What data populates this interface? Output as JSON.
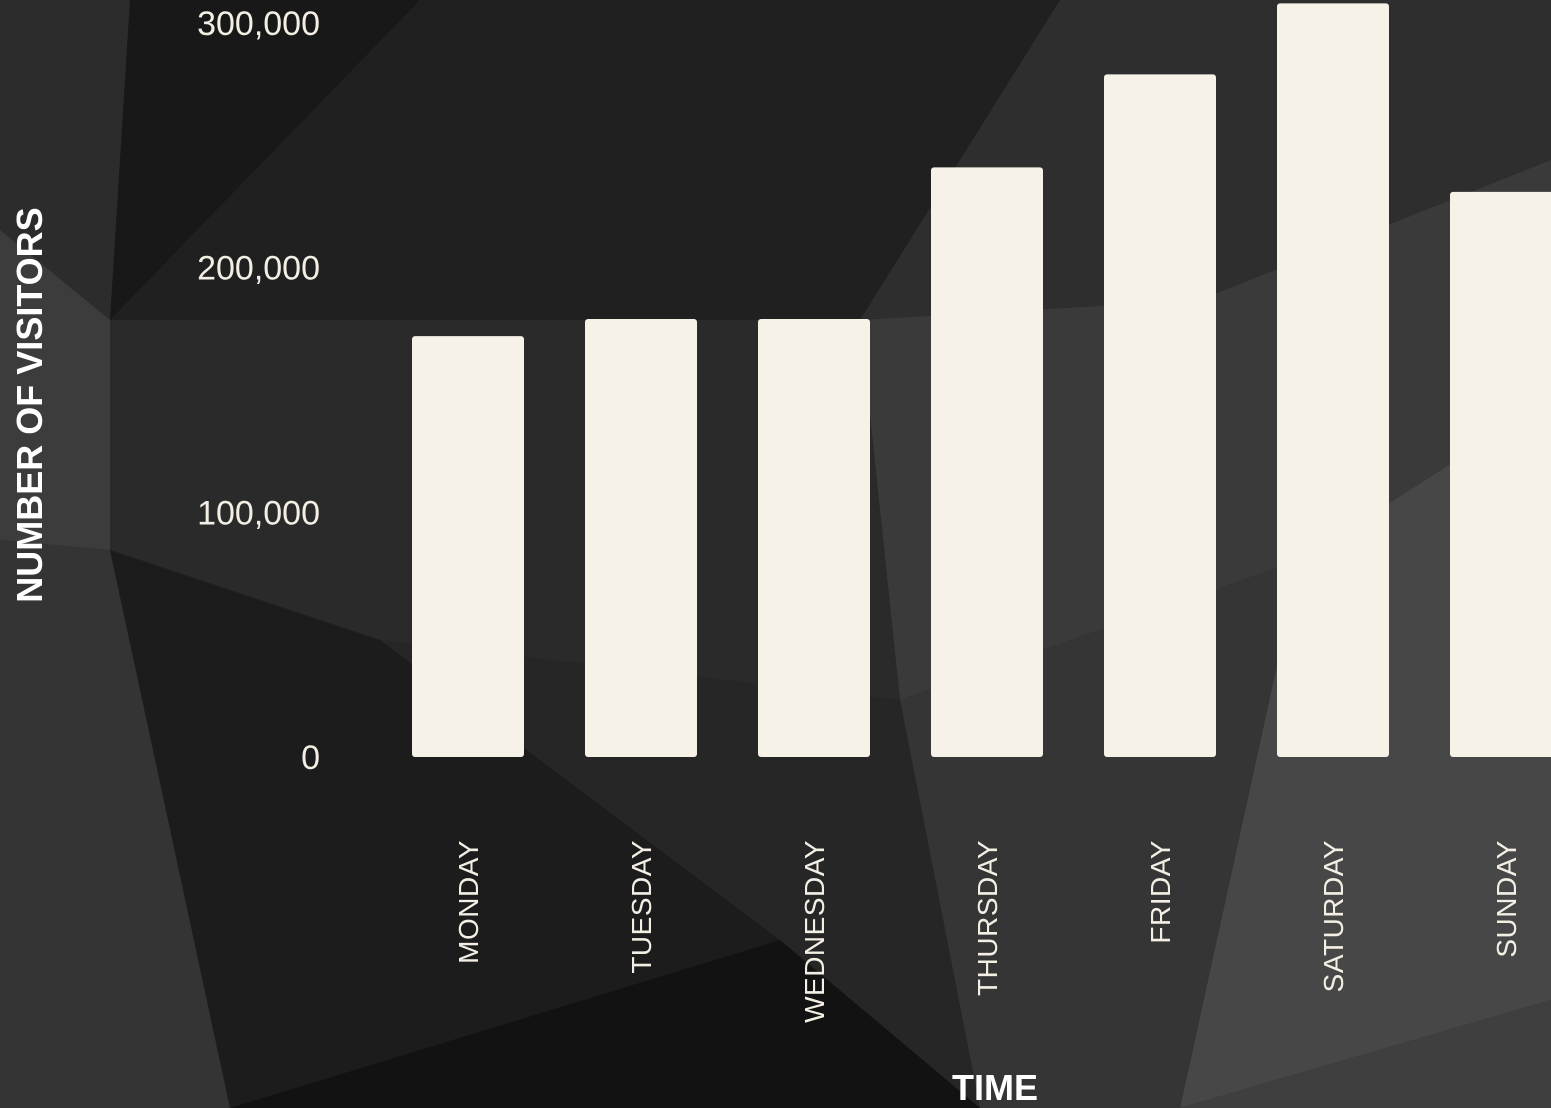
{
  "chart_data": {
    "type": "bar",
    "categories": [
      "MONDAY",
      "TUESDAY",
      "WEDNESDAY",
      "THURSDAY",
      "FRIDAY",
      "SATURDAY",
      "SUNDAY"
    ],
    "values": [
      172000,
      179000,
      179000,
      241000,
      279000,
      308000,
      231000
    ],
    "title": "",
    "xlabel": "TIME",
    "ylabel": "NUMBER OF VISITORS",
    "ylim": [
      0,
      300000
    ],
    "yticks": [
      0,
      100000,
      200000,
      300000
    ],
    "ytick_labels": [
      "0",
      "100,000",
      "200,000",
      "300,000"
    ],
    "grid": false,
    "legend": "none",
    "colors": {
      "bar": "#f7f2e7",
      "text": "#f4efe4",
      "background": "#262626"
    }
  }
}
